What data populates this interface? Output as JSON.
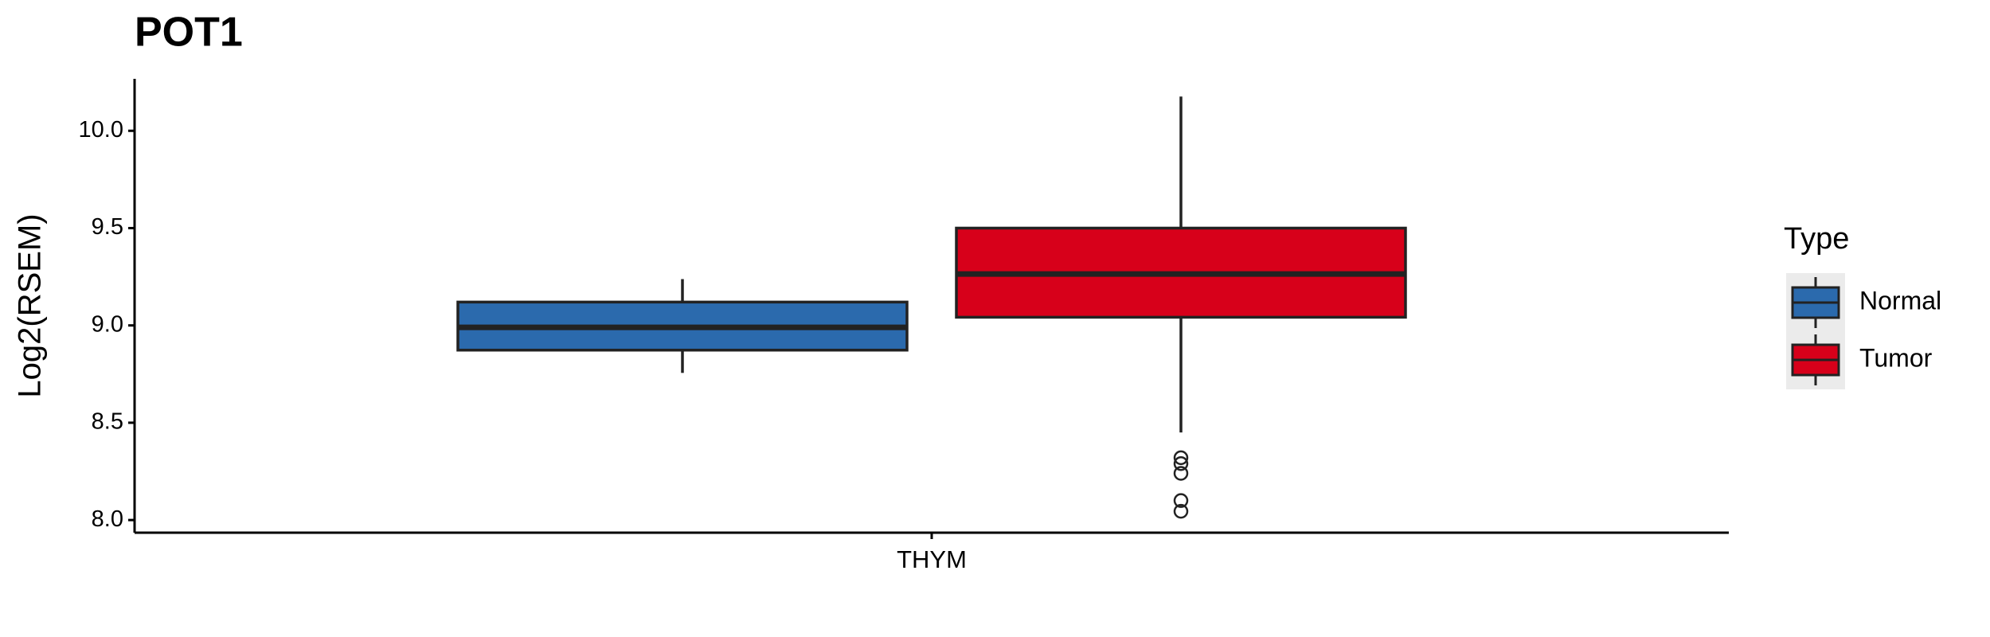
{
  "chart_data": {
    "type": "box",
    "title": "POT1",
    "ylabel": "Log2(RSEM)",
    "categories": [
      "THYM"
    ],
    "legend_title": "Type",
    "series": [
      {
        "name": "Normal",
        "color": "#2b6aad",
        "whislo": 8.756,
        "q1": 8.873,
        "median": 8.99,
        "q3": 9.12,
        "whishi": 9.238,
        "fliers": []
      },
      {
        "name": "Tumor",
        "color": "#d7001a",
        "whislo": 8.45,
        "q1": 9.042,
        "median": 9.264,
        "q3": 9.5,
        "whishi": 10.176,
        "fliers": [
          8.32,
          8.29,
          8.24,
          8.1,
          8.045
        ]
      }
    ],
    "ylim": [
      7.935,
      10.267
    ],
    "yticks": [
      {
        "value": 8,
        "label": "8.0"
      },
      8.5,
      {
        "value": 9,
        "label": "9.0"
      },
      9.5,
      {
        "value": 10,
        "label": "10.0"
      }
    ]
  }
}
